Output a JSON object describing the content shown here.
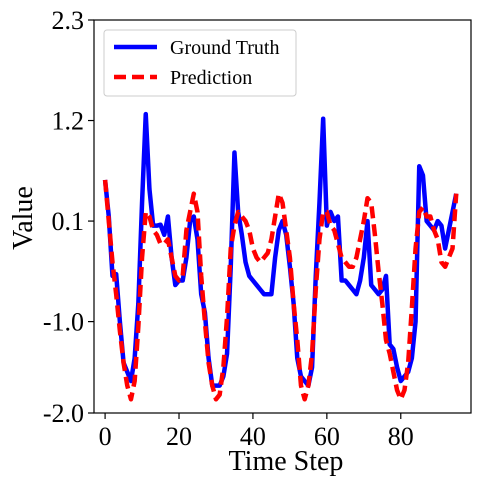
{
  "chart_data": {
    "type": "line",
    "xlabel": "Time Step",
    "ylabel": "Value",
    "xlim": [
      -3,
      99
    ],
    "ylim": [
      -2.0,
      2.3
    ],
    "xticks": [
      0,
      20,
      40,
      60,
      80
    ],
    "yticks": [
      -2.0,
      -1.0,
      0.1,
      1.2,
      2.3
    ],
    "ytick_labels": [
      "-2.0",
      "-1.0",
      "0.1",
      "1.2",
      "2.3"
    ],
    "grid": false,
    "legend_position": "top-left",
    "series": [
      {
        "name": "Ground Truth",
        "color": "#0000ff",
        "style": "solid",
        "x": [
          0,
          1,
          2,
          3,
          4,
          5,
          6,
          7,
          8,
          9,
          10,
          11,
          12,
          13,
          14,
          15,
          16,
          17,
          18,
          19,
          20,
          21,
          22,
          23,
          24,
          25,
          26,
          27,
          28,
          29,
          30,
          31,
          32,
          33,
          34,
          35,
          36,
          37,
          38,
          39,
          40,
          41,
          42,
          43,
          44,
          45,
          46,
          47,
          48,
          49,
          50,
          51,
          52,
          53,
          54,
          55,
          56,
          57,
          58,
          59,
          60,
          61,
          62,
          63,
          64,
          65,
          66,
          67,
          68,
          69,
          70,
          71,
          72,
          73,
          74,
          75,
          76,
          77,
          78,
          79,
          80,
          81,
          82,
          83,
          84,
          85,
          86,
          87,
          88,
          89,
          90,
          91,
          92,
          93,
          94,
          95
        ],
        "y": [
          0.55,
          0.15,
          -0.5,
          -0.48,
          -1.0,
          -1.45,
          -1.55,
          -1.65,
          -1.4,
          -0.8,
          0.3,
          1.27,
          0.45,
          0.05,
          0.05,
          0.06,
          -0.05,
          0.15,
          -0.3,
          -0.6,
          -0.55,
          -0.55,
          -0.3,
          0.1,
          0.15,
          -0.1,
          -0.7,
          -0.9,
          -1.4,
          -1.7,
          -1.7,
          -1.7,
          -1.6,
          -1.35,
          -0.4,
          0.85,
          0.2,
          -0.05,
          -0.35,
          -0.5,
          -0.55,
          -0.6,
          -0.65,
          -0.7,
          -0.7,
          -0.7,
          -0.3,
          0.0,
          0.1,
          -0.05,
          -0.4,
          -0.8,
          -1.4,
          -1.6,
          -1.65,
          -1.7,
          -1.5,
          -0.5,
          0.3,
          1.22,
          0.05,
          0.2,
          0.1,
          0.15,
          -0.55,
          -0.55,
          -0.6,
          -0.65,
          -0.7,
          -0.55,
          -0.3,
          0.1,
          -0.6,
          -0.65,
          -0.7,
          -0.65,
          -0.5,
          -1.25,
          -1.3,
          -1.5,
          -1.65,
          -1.6,
          -1.55,
          -1.4,
          -1.0,
          0.7,
          0.6,
          0.1,
          0.05,
          0.0,
          0.1,
          0.05,
          -0.2,
          0.0,
          0.2,
          0.4
        ],
        "line_width": 4.5
      },
      {
        "name": "Prediction",
        "color": "#ff0000",
        "style": "dashed",
        "x": [
          0,
          1,
          2,
          3,
          4,
          5,
          6,
          7,
          8,
          9,
          10,
          11,
          12,
          13,
          14,
          15,
          16,
          17,
          18,
          19,
          20,
          21,
          22,
          23,
          24,
          25,
          26,
          27,
          28,
          29,
          30,
          31,
          32,
          33,
          34,
          35,
          36,
          37,
          38,
          39,
          40,
          41,
          42,
          43,
          44,
          45,
          46,
          47,
          48,
          49,
          50,
          51,
          52,
          53,
          54,
          55,
          56,
          57,
          58,
          59,
          60,
          61,
          62,
          63,
          64,
          65,
          66,
          67,
          68,
          69,
          70,
          71,
          72,
          73,
          74,
          75,
          76,
          77,
          78,
          79,
          80,
          81,
          82,
          83,
          84,
          85,
          86,
          87,
          88,
          89,
          90,
          91,
          92,
          93,
          94,
          95
        ],
        "y": [
          0.55,
          0.1,
          -0.35,
          -0.7,
          -1.1,
          -1.45,
          -1.7,
          -1.85,
          -1.65,
          -1.05,
          -0.3,
          0.2,
          0.15,
          0.0,
          -0.05,
          -0.15,
          -0.15,
          -0.1,
          -0.3,
          -0.5,
          -0.55,
          -0.5,
          0.0,
          0.2,
          0.4,
          0.2,
          -0.5,
          -1.0,
          -1.45,
          -1.7,
          -1.85,
          -1.8,
          -1.5,
          -0.95,
          -0.2,
          0.05,
          0.2,
          0.15,
          0.1,
          0.0,
          -0.2,
          -0.3,
          -0.35,
          -0.3,
          -0.25,
          -0.1,
          0.15,
          0.4,
          0.3,
          0.0,
          -0.3,
          -0.8,
          -1.2,
          -1.7,
          -1.85,
          -1.7,
          -1.35,
          -0.65,
          -0.1,
          0.2,
          0.2,
          0.05,
          0.0,
          -0.15,
          -0.3,
          -0.35,
          -0.4,
          -0.4,
          -0.3,
          -0.1,
          0.1,
          0.35,
          0.3,
          -0.05,
          -0.45,
          -0.8,
          -1.2,
          -1.35,
          -1.55,
          -1.75,
          -1.85,
          -1.75,
          -1.45,
          -0.85,
          -0.2,
          0.2,
          0.25,
          0.15,
          0.15,
          0.0,
          -0.1,
          -0.35,
          -0.4,
          -0.3,
          -0.2,
          0.4
        ],
        "line_width": 4.5
      }
    ]
  }
}
